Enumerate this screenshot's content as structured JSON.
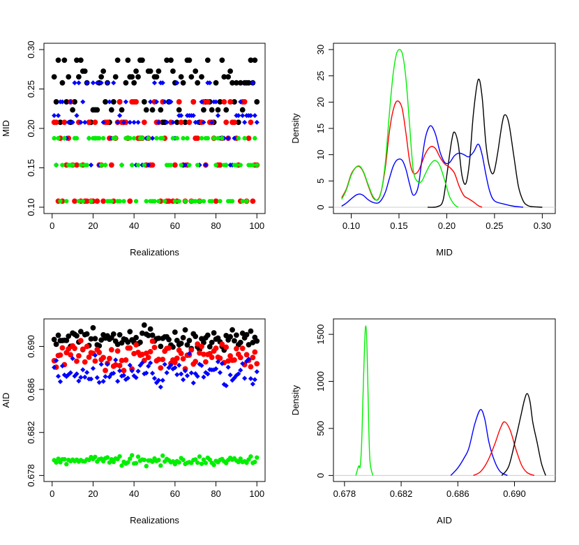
{
  "chart_data": [
    {
      "type": "scatter",
      "xlabel": "Realizations",
      "ylabel": "MID",
      "xlim": [
        0,
        100
      ],
      "ylim": [
        0.1,
        0.3
      ],
      "xticks": [
        "0",
        "20",
        "40",
        "60",
        "80",
        "100"
      ],
      "yticks": [
        "0.10",
        "0.15",
        "0.20",
        "0.25",
        "0.30"
      ],
      "series": [
        {
          "color": "#000000",
          "marker": "circle",
          "levels": [
            0.2077,
            0.2235,
            0.2337,
            0.2578,
            0.2654,
            0.2726,
            0.2865
          ]
        },
        {
          "color": "#ff0000",
          "marker": "circle",
          "levels": [
            0.1077,
            0.1535,
            0.1875,
            0.2077,
            0.2337
          ]
        },
        {
          "color": "#0000ff",
          "marker": "diamond",
          "levels": [
            0.1535,
            0.1875,
            0.2077,
            0.2163,
            0.2337,
            0.2578
          ]
        },
        {
          "color": "#00ee00",
          "marker": "circle",
          "levels": [
            0.1077,
            0.1535,
            0.1875
          ]
        }
      ]
    },
    {
      "type": "line",
      "xlabel": "MID",
      "ylabel": "Density",
      "xlim": [
        0.09,
        0.305
      ],
      "ylim": [
        0,
        30
      ],
      "xticks": [
        "0.10",
        "0.15",
        "0.20",
        "0.25",
        "0.30"
      ],
      "yticks": [
        "0",
        "5",
        "10",
        "15",
        "20",
        "25",
        "30"
      ],
      "series": [
        {
          "color": "#000000",
          "x": [
            0.18,
            0.19,
            0.196,
            0.2,
            0.205,
            0.208,
            0.212,
            0.216,
            0.22,
            0.224,
            0.228,
            0.233,
            0.237,
            0.241,
            0.245,
            0.249,
            0.253,
            0.258,
            0.261,
            0.265,
            0.27,
            0.275,
            0.28,
            0.285,
            0.29,
            0.3
          ],
          "y": [
            0,
            0.1,
            1.2,
            6,
            12.5,
            14.3,
            12,
            6,
            4.5,
            9,
            18,
            24.3,
            21,
            12,
            7.5,
            6.5,
            10,
            16,
            17.6,
            16,
            10,
            4,
            1.2,
            0.3,
            0.1,
            0
          ]
        },
        {
          "color": "#ff0000",
          "x": [
            0.09,
            0.095,
            0.1,
            0.105,
            0.109,
            0.113,
            0.118,
            0.123,
            0.128,
            0.132,
            0.136,
            0.14,
            0.144,
            0.148,
            0.153,
            0.157,
            0.161,
            0.165,
            0.17,
            0.174,
            0.178,
            0.183,
            0.188,
            0.193,
            0.198,
            0.203,
            0.208,
            0.213,
            0.218,
            0.223,
            0.228,
            0.233,
            0.237
          ],
          "y": [
            1.8,
            3.5,
            6.3,
            7.6,
            7.7,
            6.6,
            4,
            1.8,
            1.5,
            3.5,
            8,
            14.5,
            18.5,
            20.2,
            19,
            14.5,
            9,
            6.5,
            6.8,
            8.5,
            10.3,
            11.5,
            11.2,
            9.5,
            8.2,
            7.6,
            6.5,
            4,
            2.2,
            1.6,
            1,
            0.3,
            0
          ]
        },
        {
          "color": "#0000ff",
          "x": [
            0.09,
            0.095,
            0.1,
            0.105,
            0.109,
            0.113,
            0.118,
            0.123,
            0.128,
            0.132,
            0.136,
            0.14,
            0.144,
            0.148,
            0.153,
            0.157,
            0.161,
            0.165,
            0.17,
            0.174,
            0.178,
            0.183,
            0.188,
            0.193,
            0.198,
            0.203,
            0.208,
            0.213,
            0.218,
            0.223,
            0.228,
            0.233,
            0.237,
            0.241,
            0.245,
            0.25,
            0.26,
            0.27,
            0.28
          ],
          "y": [
            0.2,
            0.8,
            1.6,
            2.3,
            2.5,
            2.2,
            1.4,
            0.9,
            0.8,
            1.5,
            3,
            5.5,
            7.8,
            9,
            9,
            7.4,
            4.5,
            2.3,
            3.8,
            9,
            13.5,
            15.5,
            14,
            10.5,
            8.5,
            8.5,
            9.8,
            10.3,
            10,
            9.6,
            10.5,
            12,
            10,
            6.2,
            3,
            1.2,
            0.6,
            0.2,
            0
          ]
        },
        {
          "color": "#00ee00",
          "x": [
            0.09,
            0.095,
            0.1,
            0.105,
            0.109,
            0.113,
            0.118,
            0.123,
            0.128,
            0.132,
            0.136,
            0.14,
            0.144,
            0.148,
            0.153,
            0.157,
            0.161,
            0.165,
            0.17,
            0.174,
            0.178,
            0.183,
            0.188,
            0.193,
            0.198,
            0.203,
            0.208,
            0.212
          ],
          "y": [
            1.5,
            3.3,
            6.1,
            7.6,
            7.8,
            6.7,
            4.2,
            2,
            1.4,
            3.5,
            9,
            18,
            25.5,
            29.5,
            29.5,
            25,
            16,
            7,
            4.8,
            5,
            6.5,
            8.2,
            8.9,
            7.8,
            5,
            2,
            0.5,
            0
          ]
        }
      ]
    },
    {
      "type": "scatter",
      "xlabel": "Realizations",
      "ylabel": "AID",
      "xlim": [
        0,
        100
      ],
      "ylim": [
        0.678,
        0.692
      ],
      "xticks": [
        "0",
        "20",
        "40",
        "60",
        "80",
        "100"
      ],
      "yticks": [
        "0.678",
        "0.682",
        "0.686",
        "0.690"
      ],
      "series": [
        {
          "color": "#000000",
          "marker": "circle",
          "center": 0.6907,
          "spread": 0.00045
        },
        {
          "color": "#ff0000",
          "marker": "circle",
          "center": 0.6891,
          "spread": 0.0006
        },
        {
          "color": "#0000ff",
          "marker": "diamond",
          "center": 0.6876,
          "spread": 0.00065
        },
        {
          "color": "#00ee00",
          "marker": "circle",
          "center": 0.6794,
          "spread": 0.0002
        }
      ]
    },
    {
      "type": "line",
      "xlabel": "AID",
      "ylabel": "Density",
      "xlim": [
        0.6778,
        0.6923
      ],
      "ylim": [
        0,
        1600
      ],
      "xticks": [
        "0.678",
        "0.682",
        "0.686",
        "0.690"
      ],
      "yticks": [
        "0",
        "500",
        "1000",
        "1500"
      ],
      "series": [
        {
          "color": "#00ee00",
          "x": [
            0.6788,
            0.679,
            0.6791,
            0.6792,
            0.6793,
            0.6794,
            0.6795,
            0.6796,
            0.6797,
            0.6798,
            0.68
          ],
          "y": [
            0,
            100,
            90,
            300,
            800,
            1300,
            1590,
            1300,
            600,
            150,
            0
          ]
        },
        {
          "color": "#0000ff",
          "x": [
            0.6855,
            0.686,
            0.6865,
            0.6868,
            0.6872,
            0.6876,
            0.6879,
            0.6882,
            0.6886,
            0.689,
            0.6895
          ],
          "y": [
            0,
            80,
            200,
            300,
            550,
            700,
            600,
            350,
            150,
            40,
            0
          ]
        },
        {
          "color": "#ff0000",
          "x": [
            0.6871,
            0.6876,
            0.6881,
            0.6886,
            0.689,
            0.6893,
            0.6897,
            0.6901,
            0.6905,
            0.6909,
            0.6914
          ],
          "y": [
            0,
            40,
            150,
            330,
            500,
            570,
            480,
            280,
            110,
            30,
            0
          ]
        },
        {
          "color": "#000000",
          "x": [
            0.6891,
            0.6896,
            0.6901,
            0.6904,
            0.6907,
            0.6909,
            0.6911,
            0.6913,
            0.6916,
            0.6919,
            0.6922
          ],
          "y": [
            0,
            100,
            400,
            600,
            800,
            870,
            780,
            560,
            350,
            130,
            0
          ]
        }
      ]
    }
  ]
}
